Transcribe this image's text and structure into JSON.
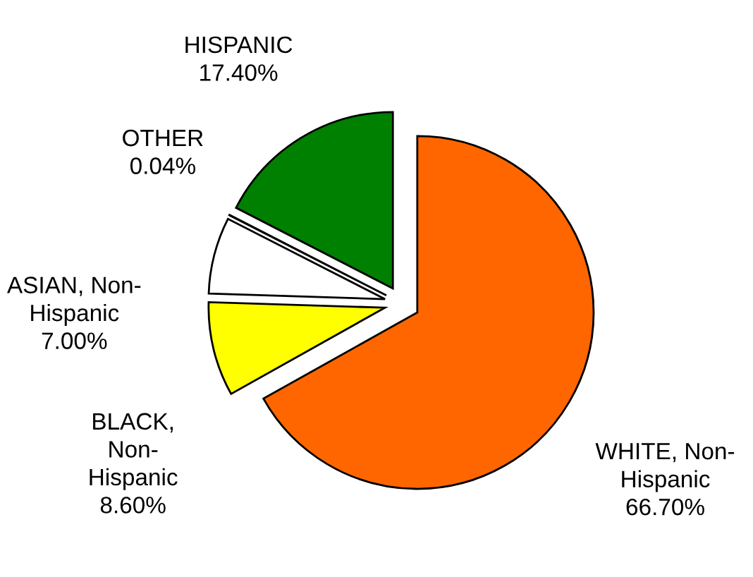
{
  "chart_data": {
    "type": "pie",
    "categories": [
      "WHITE, Non-\nHispanic",
      "BLACK,\nNon-\nHispanic",
      "ASIAN, Non-\nHispanic",
      "OTHER",
      "HISPANIC"
    ],
    "values": [
      66.7,
      8.6,
      7.0,
      0.04,
      17.4
    ],
    "value_labels": [
      "66.70%",
      "8.60%",
      "7.00%",
      "0.04%",
      "17.40%"
    ],
    "colors": [
      "#ff6600",
      "#ffff00",
      "#ffffff",
      "#ffffff",
      "#008000"
    ],
    "legend": false
  }
}
